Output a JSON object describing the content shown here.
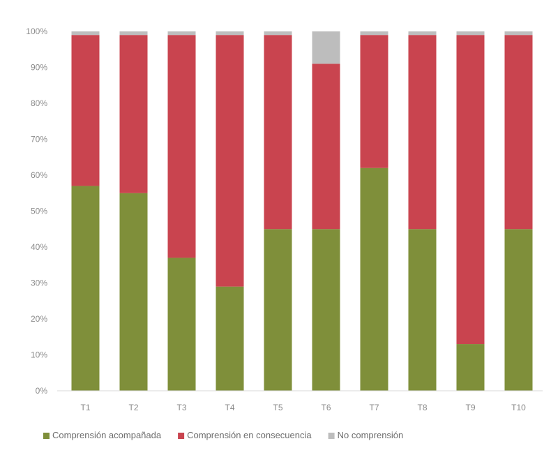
{
  "chart_data": {
    "type": "bar",
    "stacked": true,
    "categories": [
      "T1",
      "T2",
      "T3",
      "T4",
      "T5",
      "T6",
      "T7",
      "T8",
      "T9",
      "T10"
    ],
    "series": [
      {
        "name": "Comprensión acompañada",
        "color": "#7f8f3a",
        "values": [
          57,
          55,
          37,
          29,
          45,
          45,
          62,
          45,
          13,
          45
        ]
      },
      {
        "name": "Comprensión en consecuencia",
        "color": "#c9444f",
        "values": [
          42,
          44,
          62,
          70,
          54,
          46,
          37,
          54,
          86,
          54
        ]
      },
      {
        "name": "No comprensión",
        "color": "#bdbdbd",
        "values": [
          1,
          1,
          1,
          1,
          1,
          9,
          1,
          1,
          1,
          1
        ]
      }
    ],
    "yticks": [
      "0%",
      "10%",
      "20%",
      "30%",
      "40%",
      "50%",
      "60%",
      "70%",
      "80%",
      "90%",
      "100%"
    ],
    "ylim": [
      0,
      100
    ],
    "legend": "bottom",
    "grid": false
  }
}
